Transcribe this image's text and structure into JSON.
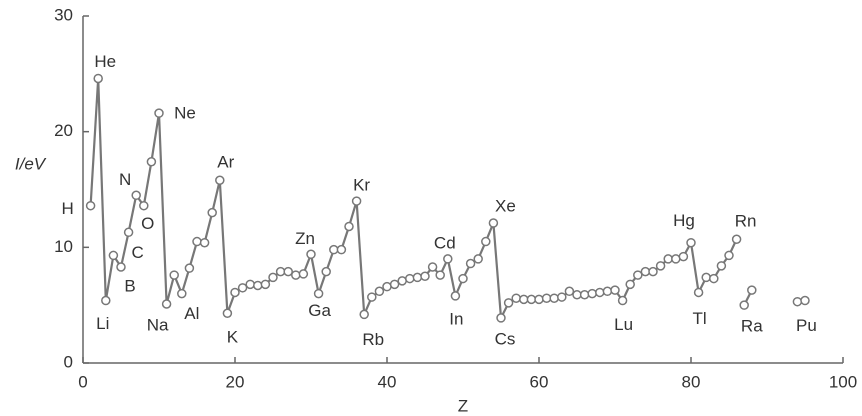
{
  "chart_data": {
    "type": "line",
    "x_label": "Z",
    "y_label": "I/eV",
    "xlim": [
      0,
      100
    ],
    "xticks": [
      0,
      20,
      40,
      60,
      80,
      100
    ],
    "ylim": [
      0,
      30
    ],
    "yticks": [
      0,
      10,
      20,
      30
    ],
    "grid": false,
    "series": [
      {
        "color": "#777777",
        "x": [
          1,
          2,
          3,
          4,
          5,
          6,
          7,
          8,
          9,
          10,
          11,
          12,
          13,
          14,
          15,
          16,
          17,
          18,
          19,
          20,
          21,
          22,
          23,
          24,
          25,
          26,
          27,
          28,
          29,
          30,
          31,
          32,
          33,
          34,
          35,
          36,
          37,
          38,
          39,
          40,
          41,
          42,
          43,
          44,
          45,
          46,
          47,
          48,
          49,
          50,
          51,
          52,
          53,
          54,
          55,
          56,
          57,
          58,
          59,
          60,
          61,
          62,
          63,
          64,
          65,
          66,
          67,
          68,
          69,
          70,
          71,
          72,
          73,
          74,
          75,
          76,
          77,
          78,
          79,
          80,
          81,
          82,
          83,
          84,
          85,
          86
        ],
        "values": [
          13.6,
          24.6,
          5.4,
          9.3,
          8.3,
          11.3,
          14.5,
          13.6,
          17.4,
          21.6,
          5.1,
          7.6,
          6.0,
          8.2,
          10.5,
          10.4,
          13.0,
          15.8,
          4.3,
          6.1,
          6.5,
          6.8,
          6.7,
          6.8,
          7.4,
          7.9,
          7.9,
          7.6,
          7.7,
          9.4,
          6.0,
          7.9,
          9.8,
          9.8,
          11.8,
          14.0,
          4.2,
          5.7,
          6.2,
          6.6,
          6.8,
          7.1,
          7.3,
          7.4,
          7.5,
          8.3,
          7.6,
          9.0,
          5.8,
          7.3,
          8.6,
          9.0,
          10.5,
          12.1,
          3.9,
          5.2,
          5.6,
          5.5,
          5.5,
          5.5,
          5.6,
          5.6,
          5.7,
          6.2,
          5.9,
          5.9,
          6.0,
          6.1,
          6.2,
          6.3,
          5.4,
          6.8,
          7.6,
          7.9,
          7.9,
          8.4,
          9.0,
          9.0,
          9.2,
          10.4,
          6.1,
          7.4,
          7.3,
          8.4,
          9.3,
          10.7
        ]
      },
      {
        "color": "#777777",
        "x": [
          87,
          88
        ],
        "values": [
          5.0,
          6.3
        ]
      },
      {
        "color": "#777777",
        "x": [
          94,
          95
        ],
        "values": [
          5.3,
          5.4
        ]
      }
    ],
    "annotations": [
      {
        "text": "H",
        "x": 1
      },
      {
        "text": "He",
        "x": 2
      },
      {
        "text": "Li",
        "x": 3
      },
      {
        "text": "B",
        "x": 5
      },
      {
        "text": "C",
        "x": 6
      },
      {
        "text": "N",
        "x": 7
      },
      {
        "text": "O",
        "x": 8
      },
      {
        "text": "Ne",
        "x": 10
      },
      {
        "text": "Na",
        "x": 11
      },
      {
        "text": "Al",
        "x": 13
      },
      {
        "text": "Ar",
        "x": 18
      },
      {
        "text": "K",
        "x": 19
      },
      {
        "text": "Zn",
        "x": 30
      },
      {
        "text": "Ga",
        "x": 31
      },
      {
        "text": "Kr",
        "x": 36
      },
      {
        "text": "Rb",
        "x": 37
      },
      {
        "text": "Cd",
        "x": 48
      },
      {
        "text": "In",
        "x": 49
      },
      {
        "text": "Xe",
        "x": 54
      },
      {
        "text": "Cs",
        "x": 55
      },
      {
        "text": "Lu",
        "x": 71
      },
      {
        "text": "Hg",
        "x": 80
      },
      {
        "text": "Tl",
        "x": 81
      },
      {
        "text": "Rn",
        "x": 86
      },
      {
        "text": "Ra",
        "x": 88
      },
      {
        "text": "Pu",
        "x": 94
      }
    ]
  }
}
